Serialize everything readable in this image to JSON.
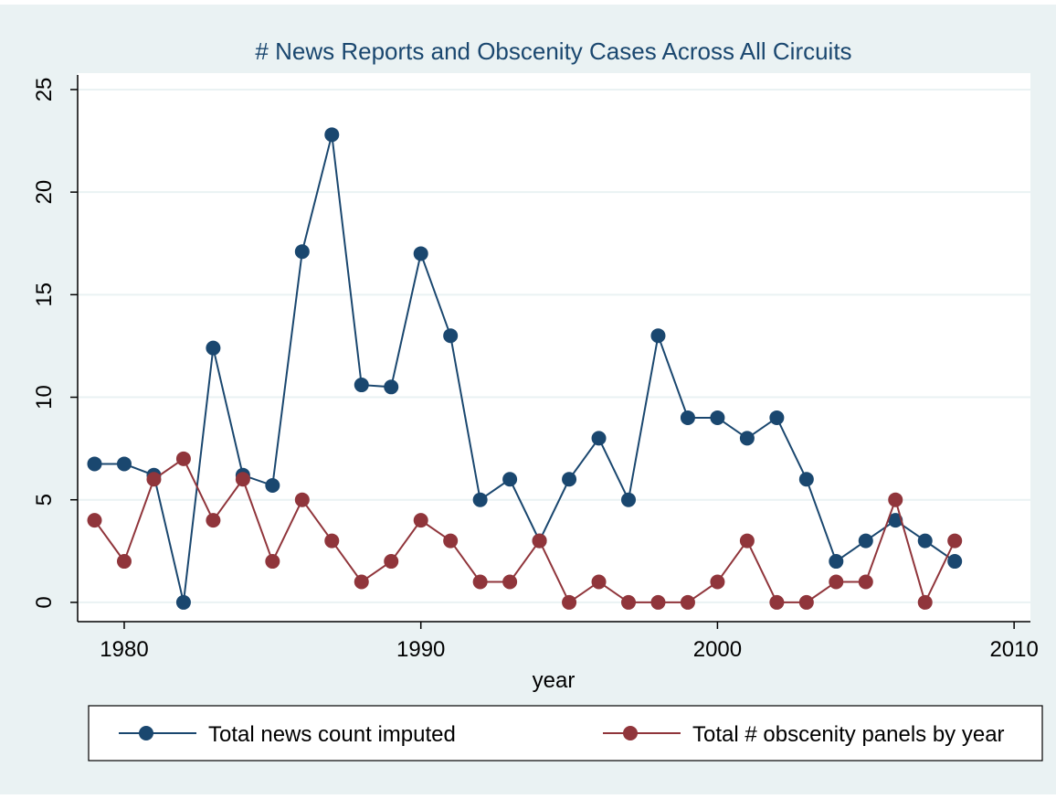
{
  "chart_data": {
    "type": "line",
    "title": "# News Reports and Obscenity Cases Across All Circuits",
    "x_label": "year",
    "x": [
      1979,
      1980,
      1981,
      1982,
      1983,
      1984,
      1985,
      1986,
      1987,
      1988,
      1989,
      1990,
      1991,
      1992,
      1993,
      1994,
      1995,
      1996,
      1997,
      1998,
      1999,
      2000,
      2001,
      2002,
      2003,
      2004,
      2005,
      2006,
      2007,
      2008
    ],
    "series": [
      {
        "name": "Total news count imputed",
        "color": "#1a476f",
        "values": [
          6.75,
          6.75,
          6.2,
          0,
          12.4,
          6.2,
          5.7,
          17.1,
          22.8,
          10.6,
          10.5,
          17,
          13,
          5,
          6,
          3,
          6,
          8,
          5,
          13,
          9,
          9,
          8,
          9,
          6,
          2,
          3,
          4,
          3,
          2
        ]
      },
      {
        "name": "Total # obscenity panels by year",
        "color": "#90353b",
        "values": [
          4,
          2,
          6,
          7,
          4,
          6,
          2,
          5,
          3,
          1,
          2,
          4,
          3,
          1,
          1,
          3,
          0,
          1,
          0,
          0,
          0,
          1,
          3,
          0,
          0,
          1,
          1,
          5,
          0,
          3
        ]
      }
    ],
    "xlim": [
      1978.43,
      2010.55
    ],
    "xticks": [
      1980,
      1990,
      2000,
      2010
    ],
    "ylim": [
      -0.94,
      25.8
    ],
    "yticks": [
      0,
      5,
      10,
      15,
      20,
      25
    ],
    "grid": true,
    "legend": "bottom"
  }
}
